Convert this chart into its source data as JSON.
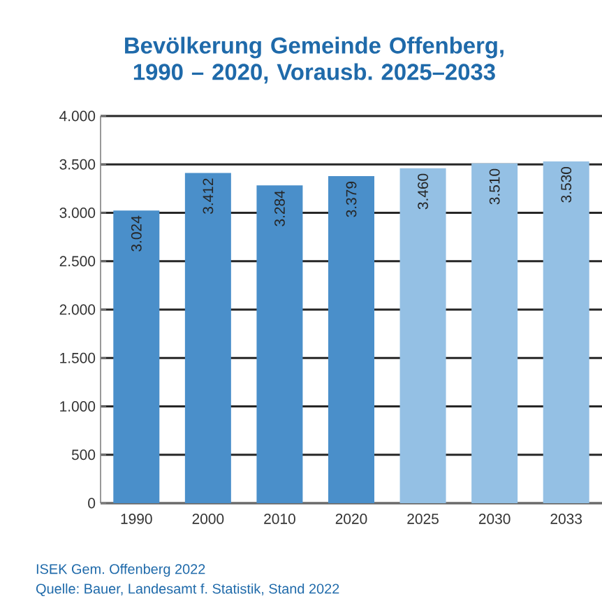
{
  "chart_data": {
    "type": "bar",
    "title": "Bevölkerung Gemeinde Offenberg, 1990 – 2020, Vorausb. 2025–2033",
    "categories": [
      "1990",
      "2000",
      "2010",
      "2020",
      "2025",
      "2030",
      "2033"
    ],
    "values": [
      3024,
      3412,
      3284,
      3379,
      3460,
      3510,
      3530
    ],
    "value_labels": [
      "3.024",
      "3.412",
      "3.284",
      "3.379",
      "3.460",
      "3.510",
      "3.530"
    ],
    "colors": [
      "#4a8fca",
      "#4a8fca",
      "#4a8fca",
      "#4a8fca",
      "#94c0e4",
      "#94c0e4",
      "#94c0e4"
    ],
    "ylim": [
      0,
      4000
    ],
    "yticks": [
      {
        "value": 0,
        "label": "0"
      },
      {
        "value": 500,
        "label": "500"
      },
      {
        "value": 1000,
        "label": "1.000"
      },
      {
        "value": 1500,
        "label": "1.500"
      },
      {
        "value": 2000,
        "label": "2.000"
      },
      {
        "value": 2500,
        "label": "2.500"
      },
      {
        "value": 3000,
        "label": "3.000"
      },
      {
        "value": 3500,
        "label": "3.500"
      },
      {
        "value": 4000,
        "label": "4.000"
      }
    ],
    "grid": "y",
    "annotations": [
      "ISEK Gem. Offenberg 2022",
      "Quelle: Bauer, Landesamt f. Statistik, Stand 2022"
    ]
  }
}
